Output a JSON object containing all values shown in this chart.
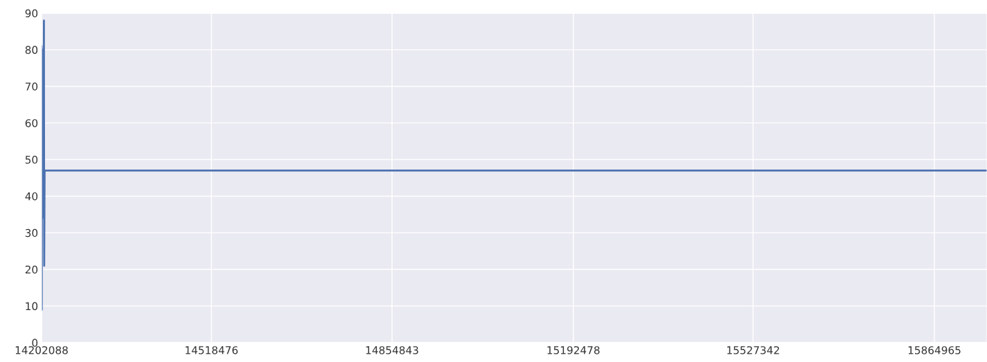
{
  "chart_data": {
    "type": "line",
    "x": [
      14202088,
      14202500,
      14203000,
      14203500,
      14204500,
      14205500,
      14206500,
      14207000,
      14207800,
      15963000
    ],
    "series": [
      {
        "color": "#4c72b0",
        "values": [
          81,
          9,
          75,
          34,
          80,
          40,
          88,
          21,
          47,
          47
        ]
      }
    ],
    "xlim": [
      14202088,
      15963000
    ],
    "xticks": [
      14202088,
      14518476,
      14854843,
      15192478,
      15527342,
      15864965
    ],
    "ylim": [
      0,
      90
    ],
    "yticks": [
      0,
      10,
      20,
      30,
      40,
      50,
      60,
      70,
      80,
      90
    ],
    "grid": true
  }
}
